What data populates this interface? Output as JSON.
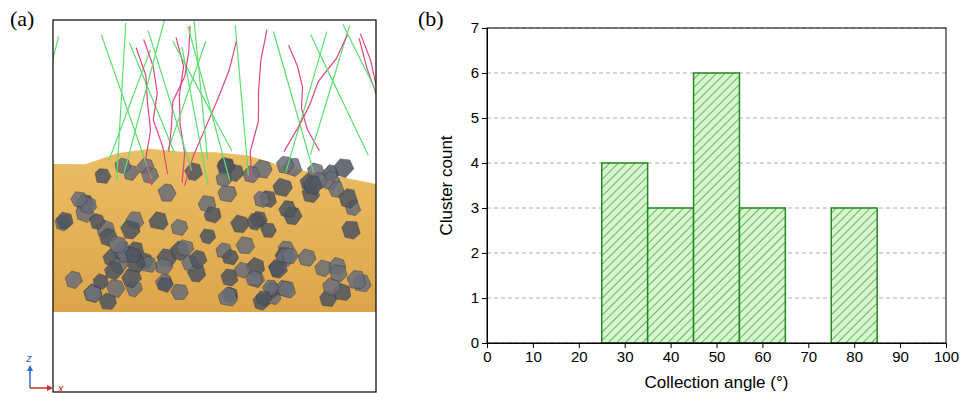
{
  "figure": {
    "panel_labels": [
      "(a)",
      "(b)"
    ],
    "orientation_axes": [
      "z",
      "x"
    ]
  },
  "chart_data": {
    "type": "histogram",
    "x_label": "Collection angle (°)",
    "y_label": "Cluster count",
    "bins": [
      25,
      35,
      45,
      55,
      65,
      75,
      85
    ],
    "values": [
      4,
      3,
      6,
      3,
      0,
      3
    ],
    "color": "#1e8c1e",
    "xlim": [
      0,
      100
    ],
    "xticks": [
      0,
      10,
      20,
      30,
      40,
      50,
      60,
      70,
      80,
      90,
      100
    ],
    "ylim": [
      0,
      7
    ],
    "yticks": [
      0,
      1,
      2,
      3,
      4,
      5,
      6,
      7
    ],
    "grid": true
  }
}
